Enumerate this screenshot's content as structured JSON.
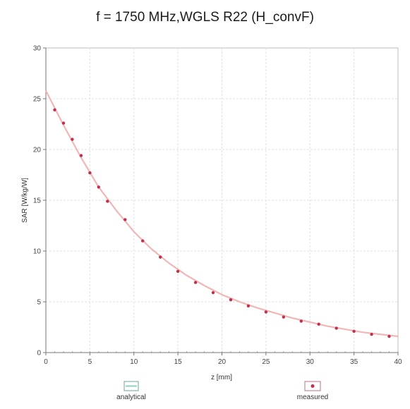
{
  "chart_data": {
    "type": "line",
    "title": "f = 1750 MHz,WGLS R22 (H_convF)",
    "xlabel": "z [mm]",
    "ylabel": "SAR [W/kg/W]",
    "xlim": [
      0,
      40
    ],
    "ylim": [
      0,
      30
    ],
    "x_ticks": [
      0,
      5,
      10,
      15,
      20,
      25,
      30,
      35,
      40
    ],
    "y_ticks": [
      0,
      5,
      10,
      15,
      20,
      25,
      30
    ],
    "grid": true,
    "legend_position": "bottom",
    "series": [
      {
        "name": "analytical",
        "color": "#f2b6b6",
        "marker": "none",
        "x": [
          0,
          2,
          4,
          6,
          8,
          10,
          12,
          14,
          16,
          18,
          20,
          22,
          24,
          26,
          28,
          30,
          32,
          34,
          36,
          38,
          40
        ],
        "values": [
          25.8,
          22.4,
          19.2,
          16.3,
          14.0,
          11.9,
          10.2,
          8.8,
          7.6,
          6.6,
          5.7,
          5.0,
          4.4,
          3.9,
          3.4,
          3.0,
          2.6,
          2.3,
          2.0,
          1.8,
          1.6
        ]
      },
      {
        "name": "measured",
        "color": "#c0304a",
        "marker": "dot",
        "x": [
          1,
          2,
          3,
          4,
          5,
          6,
          7,
          9,
          11,
          13,
          15,
          17,
          19,
          21,
          23,
          25,
          27,
          29,
          31,
          33,
          35,
          37,
          39
        ],
        "values": [
          23.9,
          22.6,
          21.0,
          19.4,
          17.7,
          16.3,
          14.9,
          13.1,
          11.0,
          9.4,
          8.0,
          6.9,
          5.9,
          5.2,
          4.6,
          4.0,
          3.5,
          3.1,
          2.8,
          2.4,
          2.1,
          1.8,
          1.6
        ]
      }
    ]
  }
}
